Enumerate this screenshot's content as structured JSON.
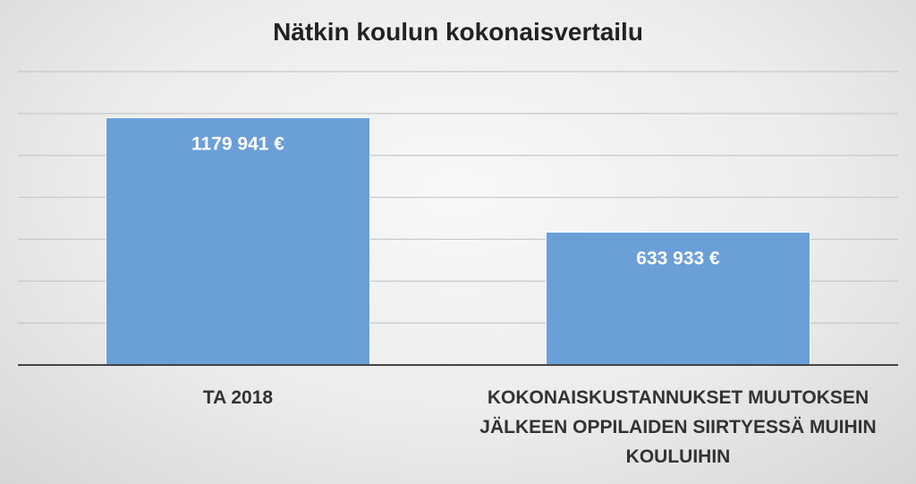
{
  "chart_data": {
    "type": "bar",
    "title": "Nätkin koulun kokonaisvertailu",
    "categories": [
      "TA 2018",
      "KOKONAISKUSTANNUKSET MUUTOKSEN JÄLKEEN OPPILAIDEN SIIRTYESSÄ MUIHIN KOULUIHIN"
    ],
    "values": [
      1179941,
      633933
    ],
    "data_labels": [
      "1179 941 €",
      "633 933 €"
    ],
    "xlabel": "",
    "ylabel": "",
    "ylim": [
      0,
      1400000
    ],
    "grid": true,
    "legend": "none",
    "bar_color": "#6a9fd8"
  }
}
